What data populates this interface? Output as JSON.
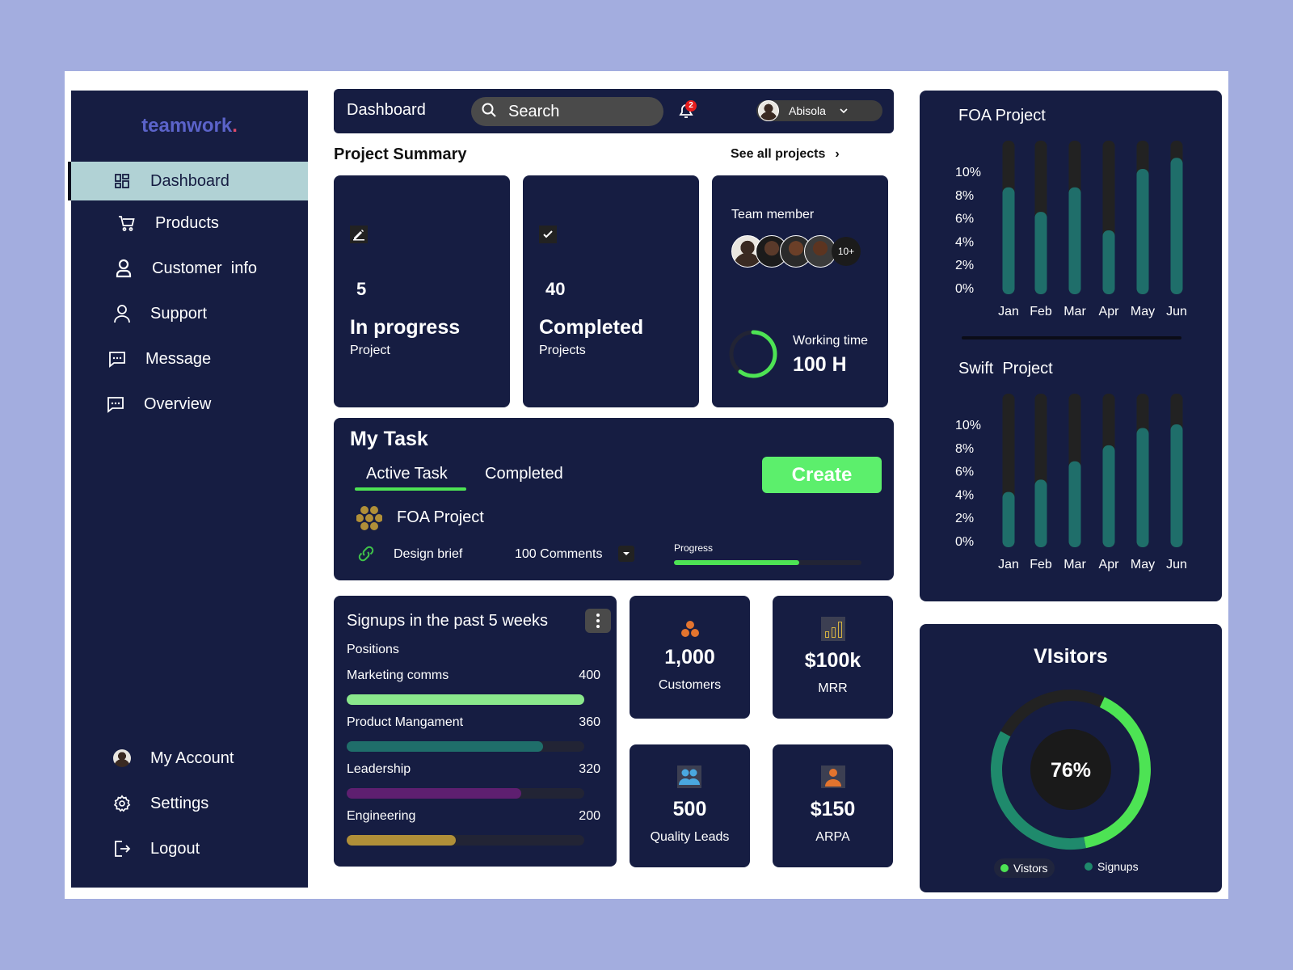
{
  "sidebar": {
    "logo": "teamwork",
    "logo_dot": ".",
    "items": [
      {
        "label": "Dashboard",
        "icon": "grid-icon"
      },
      {
        "label": "Products",
        "icon": "cart-icon"
      },
      {
        "label": "Customer  info",
        "icon": "user-icon"
      },
      {
        "label": "Support",
        "icon": "user-outline-icon"
      },
      {
        "label": "Message",
        "icon": "message-icon"
      },
      {
        "label": "Overview",
        "icon": "message-icon"
      }
    ],
    "bottom_items": [
      {
        "label": "My Account",
        "icon": "avatar"
      },
      {
        "label": "Settings",
        "icon": "gear-icon"
      },
      {
        "label": "Logout",
        "icon": "logout-icon"
      }
    ]
  },
  "header": {
    "title": "Dashboard",
    "search_placeholder": "Search",
    "notification_count": "2",
    "user_name": "Abisola"
  },
  "summary": {
    "title": "Project Summary",
    "see_all": "See all projects",
    "in_progress": {
      "count": "5",
      "label": "In progress",
      "sub": "Project"
    },
    "completed": {
      "count": "40",
      "label": "Completed",
      "sub": "Projects"
    },
    "team": {
      "title": "Team member",
      "more": "10+",
      "working_label": "Working time",
      "working_value": "100 H",
      "working_fraction": 0.6
    }
  },
  "tasks": {
    "title": "My Task",
    "tab_active": "Active Task",
    "tab_completed": "Completed",
    "create": "Create",
    "project_name": "FOA Project",
    "brief": "Design brief",
    "comments": "100 Comments",
    "progress_label": "Progress",
    "progress": 0.67
  },
  "signups": {
    "title": "Signups in the  past 5 weeks",
    "subtitle": "Positions",
    "max": 400,
    "rows": [
      {
        "label": "Marketing comms",
        "value": 400,
        "display": "400",
        "color": "#8ae88c"
      },
      {
        "label": "Product Mangament",
        "value": 360,
        "display": "360",
        "color": "#1f6e6a"
      },
      {
        "label": "Leadership",
        "value": 320,
        "display": "320",
        "color": "#5e1f70"
      },
      {
        "label": "Engineering",
        "value": 200,
        "display": "200",
        "color": "#b08f38"
      }
    ]
  },
  "stats": [
    {
      "value": "1,000",
      "label": "Customers"
    },
    {
      "value": "$100k",
      "label": "MRR"
    },
    {
      "value": "500",
      "label": "Quality Leads"
    },
    {
      "value": "$150",
      "label": "ARPA"
    }
  ],
  "chart_data": [
    {
      "type": "bar",
      "title": "FOA Project",
      "categories": [
        "Jan",
        "Feb",
        "Mar",
        "Apr",
        "May",
        "Jun"
      ],
      "values": [
        8.7,
        6.7,
        8.7,
        5.2,
        10.2,
        11.1
      ],
      "y_ticks": [
        "0%",
        "2%",
        "4%",
        "6%",
        "8%",
        "10%"
      ],
      "ylim": [
        0,
        12.5
      ],
      "bar_color": "#1f6e6a",
      "track_color": "#222222"
    },
    {
      "type": "bar",
      "title": "Swift  Project",
      "categories": [
        "Jan",
        "Feb",
        "Mar",
        "Apr",
        "May",
        "Jun"
      ],
      "values": [
        4.5,
        5.5,
        7.0,
        8.3,
        9.7,
        10.0
      ],
      "y_ticks": [
        "0%",
        "2%",
        "4%",
        "6%",
        "8%",
        "10%"
      ],
      "ylim": [
        0,
        12.5
      ],
      "bar_color": "#1f6e6a",
      "track_color": "#222222"
    },
    {
      "type": "pie",
      "title": "VIsitors",
      "center_label": "76%",
      "series": [
        {
          "name": "Vistors",
          "value": 40,
          "color": "#4de354"
        },
        {
          "name": "Signups",
          "value": 36,
          "color": "#1f8a6c"
        }
      ],
      "remainder": 24,
      "remainder_color": "#222222"
    }
  ]
}
